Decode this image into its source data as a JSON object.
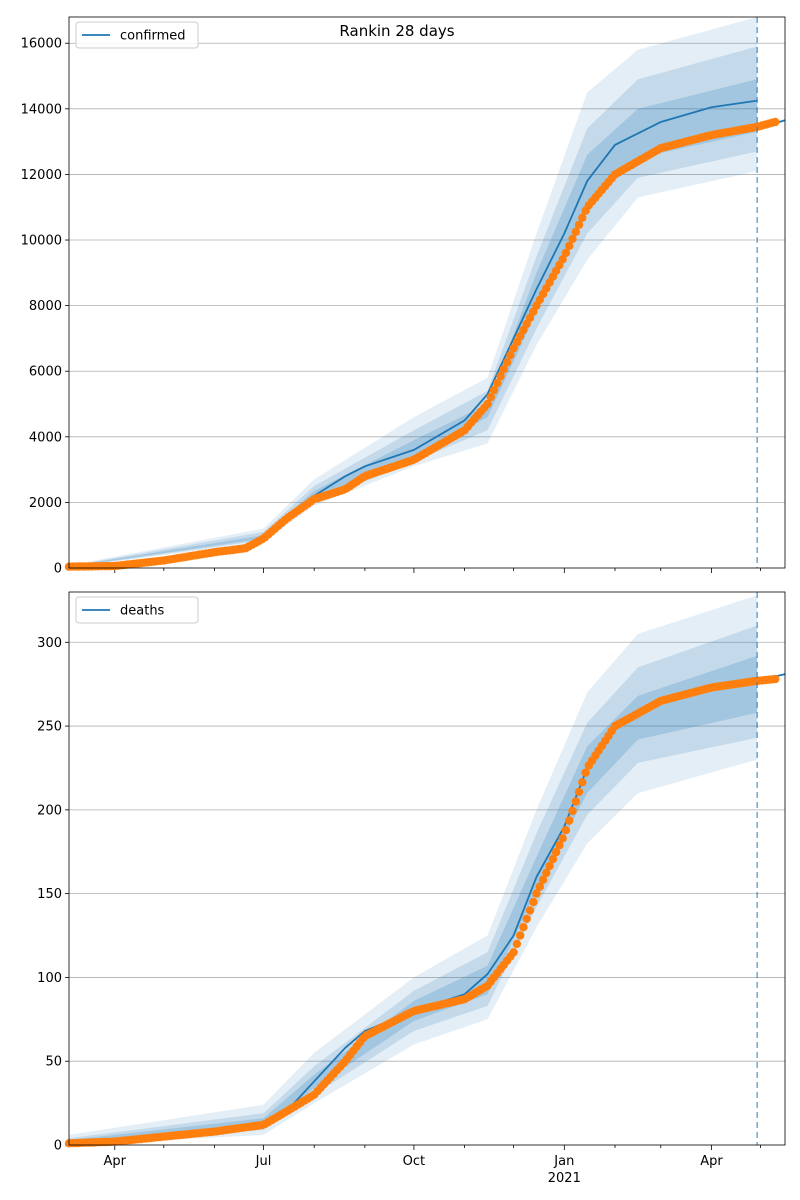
{
  "chart_data": {
    "type": "line",
    "title": "Rankin 28 days",
    "x_axis": {
      "ticks": [
        {
          "date": "2020-04-01",
          "label": "Apr",
          "sublabel": ""
        },
        {
          "date": "2020-07-01",
          "label": "Jul",
          "sublabel": ""
        },
        {
          "date": "2020-10-01",
          "label": "Oct",
          "sublabel": ""
        },
        {
          "date": "2021-01-01",
          "label": "Jan",
          "sublabel": "2021"
        },
        {
          "date": "2021-04-01",
          "label": "Apr",
          "sublabel": ""
        }
      ],
      "xlim": [
        "2020-03-04",
        "2021-05-16"
      ]
    },
    "forecast_date": "2021-04-29",
    "grid": "y",
    "legend_placement": "top-left",
    "panels": [
      {
        "legend": "confirmed",
        "ylim": [
          0,
          16800
        ],
        "yticks": [
          0,
          2000,
          4000,
          6000,
          8000,
          10000,
          12000,
          14000,
          16000
        ],
        "colors": {
          "model": "#1f77b4",
          "observed": "#ff7f0e"
        },
        "model": [
          [
            "2020-03-04",
            40
          ],
          [
            "2020-04-01",
            60
          ],
          [
            "2020-05-01",
            250
          ],
          [
            "2020-06-01",
            500
          ],
          [
            "2020-06-20",
            700
          ],
          [
            "2020-07-01",
            950
          ],
          [
            "2020-07-15",
            1500
          ],
          [
            "2020-08-01",
            2200
          ],
          [
            "2020-08-20",
            2800
          ],
          [
            "2020-09-01",
            3100
          ],
          [
            "2020-10-01",
            3600
          ],
          [
            "2020-11-01",
            4500
          ],
          [
            "2020-11-15",
            5300
          ],
          [
            "2020-12-01",
            7000
          ],
          [
            "2020-12-15",
            8500
          ],
          [
            "2021-01-01",
            10200
          ],
          [
            "2021-01-15",
            11800
          ],
          [
            "2021-02-01",
            12900
          ],
          [
            "2021-03-01",
            13600
          ],
          [
            "2021-04-01",
            14050
          ],
          [
            "2021-04-29",
            14250
          ]
        ],
        "projection": [
          [
            "2021-04-29",
            13400
          ],
          [
            "2021-05-16",
            13650
          ]
        ],
        "bands": [
          {
            "level": "outer",
            "lower": [
              [
                "2020-03-04",
                10
              ],
              [
                "2020-07-01",
                800
              ],
              [
                "2020-08-01",
                1900
              ],
              [
                "2020-10-01",
                3100
              ],
              [
                "2020-11-15",
                3800
              ],
              [
                "2020-12-15",
                6800
              ],
              [
                "2021-01-15",
                9400
              ],
              [
                "2021-02-15",
                11300
              ],
              [
                "2021-04-29",
                12100
              ]
            ],
            "upper": [
              [
                "2020-03-04",
                80
              ],
              [
                "2020-07-01",
                1200
              ],
              [
                "2020-08-01",
                2700
              ],
              [
                "2020-10-01",
                4600
              ],
              [
                "2020-11-15",
                5800
              ],
              [
                "2020-12-15",
                10200
              ],
              [
                "2021-01-15",
                14500
              ],
              [
                "2021-02-15",
                15800
              ],
              [
                "2021-04-29",
                16800
              ]
            ]
          },
          {
            "level": "middle",
            "lower": [
              [
                "2020-03-04",
                20
              ],
              [
                "2020-07-01",
                850
              ],
              [
                "2020-08-01",
                2000
              ],
              [
                "2020-10-01",
                3250
              ],
              [
                "2020-11-15",
                4200
              ],
              [
                "2020-12-15",
                7300
              ],
              [
                "2021-01-15",
                10200
              ],
              [
                "2021-02-15",
                11900
              ],
              [
                "2021-04-29",
                12700
              ]
            ],
            "upper": [
              [
                "2020-03-04",
                60
              ],
              [
                "2020-07-01",
                1100
              ],
              [
                "2020-08-01",
                2500
              ],
              [
                "2020-10-01",
                4200
              ],
              [
                "2020-11-15",
                5400
              ],
              [
                "2020-12-15",
                9500
              ],
              [
                "2021-01-15",
                13400
              ],
              [
                "2021-02-15",
                14900
              ],
              [
                "2021-04-29",
                15900
              ]
            ]
          },
          {
            "level": "inner",
            "lower": [
              [
                "2020-03-04",
                30
              ],
              [
                "2020-07-01",
                900
              ],
              [
                "2020-08-01",
                2100
              ],
              [
                "2020-10-01",
                3400
              ],
              [
                "2020-11-15",
                4600
              ],
              [
                "2020-12-15",
                7800
              ],
              [
                "2021-01-15",
                11000
              ],
              [
                "2021-02-15",
                12500
              ],
              [
                "2021-04-29",
                13300
              ]
            ],
            "upper": [
              [
                "2020-03-04",
                50
              ],
              [
                "2020-07-01",
                1000
              ],
              [
                "2020-08-01",
                2350
              ],
              [
                "2020-10-01",
                3900
              ],
              [
                "2020-11-15",
                5000
              ],
              [
                "2020-12-15",
                9000
              ],
              [
                "2021-01-15",
                12600
              ],
              [
                "2021-02-15",
                14000
              ],
              [
                "2021-04-29",
                14900
              ]
            ]
          }
        ],
        "observed": [
          [
            "2020-03-04",
            40
          ],
          [
            "2020-04-01",
            60
          ],
          [
            "2020-05-01",
            230
          ],
          [
            "2020-06-01",
            480
          ],
          [
            "2020-06-20",
            600
          ],
          [
            "2020-07-01",
            900
          ],
          [
            "2020-07-15",
            1500
          ],
          [
            "2020-08-01",
            2100
          ],
          [
            "2020-08-20",
            2400
          ],
          [
            "2020-09-01",
            2800
          ],
          [
            "2020-10-01",
            3300
          ],
          [
            "2020-11-01",
            4200
          ],
          [
            "2020-11-15",
            5000
          ],
          [
            "2020-12-01",
            6700
          ],
          [
            "2020-12-15",
            8000
          ],
          [
            "2021-01-01",
            9500
          ],
          [
            "2021-01-15",
            11000
          ],
          [
            "2021-02-01",
            12000
          ],
          [
            "2021-03-01",
            12800
          ],
          [
            "2021-04-01",
            13200
          ],
          [
            "2021-04-29",
            13450
          ],
          [
            "2021-05-10",
            13600
          ]
        ]
      },
      {
        "legend": "deaths",
        "ylim": [
          0,
          330
        ],
        "yticks": [
          0,
          50,
          100,
          150,
          200,
          250,
          300
        ],
        "colors": {
          "model": "#1f77b4",
          "observed": "#ff7f0e"
        },
        "model": [
          [
            "2020-03-04",
            1
          ],
          [
            "2020-04-01",
            2
          ],
          [
            "2020-05-01",
            5
          ],
          [
            "2020-06-01",
            9
          ],
          [
            "2020-07-01",
            13
          ],
          [
            "2020-07-15",
            20
          ],
          [
            "2020-08-01",
            38
          ],
          [
            "2020-08-20",
            58
          ],
          [
            "2020-09-01",
            68
          ],
          [
            "2020-10-01",
            80
          ],
          [
            "2020-11-01",
            90
          ],
          [
            "2020-11-15",
            102
          ],
          [
            "2020-12-01",
            125
          ],
          [
            "2020-12-15",
            160
          ],
          [
            "2021-01-01",
            190
          ],
          [
            "2021-01-15",
            225
          ],
          [
            "2021-02-01",
            250
          ],
          [
            "2021-03-01",
            265
          ],
          [
            "2021-04-01",
            272
          ],
          [
            "2021-04-29",
            278
          ]
        ],
        "projection": [
          [
            "2021-04-29",
            277
          ],
          [
            "2021-05-16",
            281
          ]
        ],
        "bands": [
          {
            "level": "outer",
            "lower": [
              [
                "2020-03-04",
                0
              ],
              [
                "2020-07-01",
                6
              ],
              [
                "2020-08-01",
                25
              ],
              [
                "2020-10-01",
                60
              ],
              [
                "2020-11-15",
                75
              ],
              [
                "2020-12-15",
                130
              ],
              [
                "2021-01-15",
                180
              ],
              [
                "2021-02-15",
                210
              ],
              [
                "2021-04-29",
                230
              ]
            ],
            "upper": [
              [
                "2020-03-04",
                6
              ],
              [
                "2020-07-01",
                24
              ],
              [
                "2020-08-01",
                55
              ],
              [
                "2020-10-01",
                100
              ],
              [
                "2020-11-15",
                125
              ],
              [
                "2020-12-15",
                200
              ],
              [
                "2021-01-15",
                270
              ],
              [
                "2021-02-15",
                305
              ],
              [
                "2021-04-29",
                328
              ]
            ]
          },
          {
            "level": "middle",
            "lower": [
              [
                "2020-03-04",
                1
              ],
              [
                "2020-07-01",
                9
              ],
              [
                "2020-08-01",
                30
              ],
              [
                "2020-10-01",
                68
              ],
              [
                "2020-11-15",
                83
              ],
              [
                "2020-12-15",
                142
              ],
              [
                "2021-01-15",
                197
              ],
              [
                "2021-02-15",
                228
              ],
              [
                "2021-04-29",
                243
              ]
            ],
            "upper": [
              [
                "2020-03-04",
                4
              ],
              [
                "2020-07-01",
                19
              ],
              [
                "2020-08-01",
                47
              ],
              [
                "2020-10-01",
                92
              ],
              [
                "2020-11-15",
                115
              ],
              [
                "2020-12-15",
                186
              ],
              [
                "2021-01-15",
                252
              ],
              [
                "2021-02-15",
                285
              ],
              [
                "2021-04-29",
                310
              ]
            ]
          },
          {
            "level": "inner",
            "lower": [
              [
                "2020-03-04",
                1
              ],
              [
                "2020-07-01",
                11
              ],
              [
                "2020-08-01",
                34
              ],
              [
                "2020-10-01",
                74
              ],
              [
                "2020-11-15",
                90
              ],
              [
                "2020-12-15",
                152
              ],
              [
                "2021-01-15",
                210
              ],
              [
                "2021-02-15",
                242
              ],
              [
                "2021-04-29",
                258
              ]
            ],
            "upper": [
              [
                "2020-03-04",
                3
              ],
              [
                "2020-07-01",
                16
              ],
              [
                "2020-08-01",
                42
              ],
              [
                "2020-10-01",
                86
              ],
              [
                "2020-11-15",
                107
              ],
              [
                "2020-12-15",
                172
              ],
              [
                "2021-01-15",
                238
              ],
              [
                "2021-02-15",
                268
              ],
              [
                "2021-04-29",
                292
              ]
            ]
          }
        ],
        "observed": [
          [
            "2020-03-04",
            1
          ],
          [
            "2020-04-01",
            2
          ],
          [
            "2020-05-01",
            5
          ],
          [
            "2020-06-01",
            8
          ],
          [
            "2020-07-01",
            12
          ],
          [
            "2020-07-15",
            20
          ],
          [
            "2020-08-01",
            30
          ],
          [
            "2020-08-20",
            50
          ],
          [
            "2020-09-01",
            65
          ],
          [
            "2020-10-01",
            80
          ],
          [
            "2020-11-01",
            87
          ],
          [
            "2020-11-15",
            95
          ],
          [
            "2020-12-01",
            115
          ],
          [
            "2020-12-15",
            150
          ],
          [
            "2021-01-01",
            185
          ],
          [
            "2021-01-15",
            225
          ],
          [
            "2021-02-01",
            250
          ],
          [
            "2021-03-01",
            265
          ],
          [
            "2021-04-01",
            273
          ],
          [
            "2021-04-29",
            277
          ],
          [
            "2021-05-10",
            278
          ]
        ]
      }
    ]
  }
}
